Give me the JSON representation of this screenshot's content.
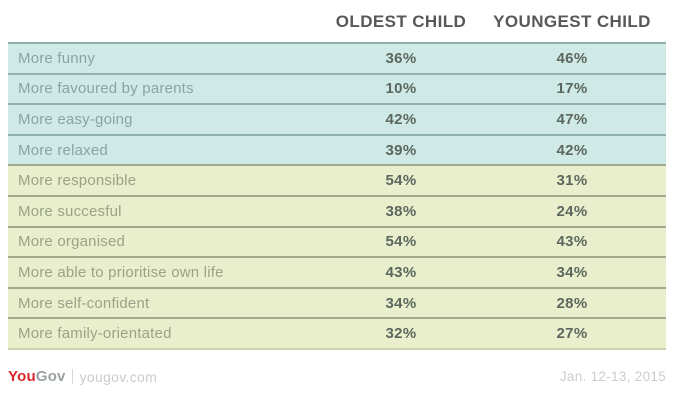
{
  "header": {
    "oldest": "OLDEST CHILD",
    "youngest": "YOUNGEST CHILD"
  },
  "rows": [
    {
      "label": "More funny",
      "oldest": "36%",
      "youngest": "46%",
      "section": "blue"
    },
    {
      "label": "More favoured by parents",
      "oldest": "10%",
      "youngest": "17%",
      "section": "blue"
    },
    {
      "label": "More easy-going",
      "oldest": "42%",
      "youngest": "47%",
      "section": "blue"
    },
    {
      "label": "More relaxed",
      "oldest": "39%",
      "youngest": "42%",
      "section": "blue"
    },
    {
      "label": "More responsible",
      "oldest": "54%",
      "youngest": "31%",
      "section": "green"
    },
    {
      "label": "More succesful",
      "oldest": "38%",
      "youngest": "24%",
      "section": "green"
    },
    {
      "label": "More organised",
      "oldest": "54%",
      "youngest": "43%",
      "section": "green"
    },
    {
      "label": "More able to prioritise own life",
      "oldest": "43%",
      "youngest": "34%",
      "section": "green"
    },
    {
      "label": "More self-confident",
      "oldest": "34%",
      "youngest": "28%",
      "section": "green"
    },
    {
      "label": "More family-orientated",
      "oldest": "32%",
      "youngest": "27%",
      "section": "green"
    }
  ],
  "chart_data": {
    "type": "table",
    "title": "",
    "categories": [
      "More funny",
      "More favoured by parents",
      "More easy-going",
      "More relaxed",
      "More responsible",
      "More succesful",
      "More organised",
      "More able to prioritise own life",
      "More self-confident",
      "More family-orientated"
    ],
    "series": [
      {
        "name": "OLDEST CHILD",
        "values": [
          36,
          10,
          42,
          39,
          54,
          38,
          54,
          43,
          34,
          32
        ]
      },
      {
        "name": "YOUNGEST CHILD",
        "values": [
          46,
          17,
          47,
          42,
          31,
          24,
          43,
          34,
          28,
          27
        ]
      }
    ],
    "unit": "%",
    "layout": {
      "row_groups": {
        "blue_rows": [
          0,
          1,
          2,
          3
        ],
        "green_rows": [
          4,
          5,
          6,
          7,
          8,
          9
        ]
      }
    }
  },
  "footer": {
    "brand_you": "You",
    "brand_gov": "Gov",
    "site": "yougov.com",
    "date": "Jan. 12-13, 2015"
  },
  "colors": {
    "row_blue": "#cfe9e7",
    "row_green": "#e9eecd",
    "divider_blue": "#8fb2b1",
    "divider_green": "#a2aa8d",
    "table_bottom": "#ccd3ae",
    "header_text": "#57585a",
    "label_blue": "#8ba3a2",
    "label_green": "#9aa388",
    "value_text": "#5c685e",
    "brand_red": "#d8262c",
    "brand_gray": "#9aa1a1",
    "footer_gray": "#c9cdcb"
  }
}
